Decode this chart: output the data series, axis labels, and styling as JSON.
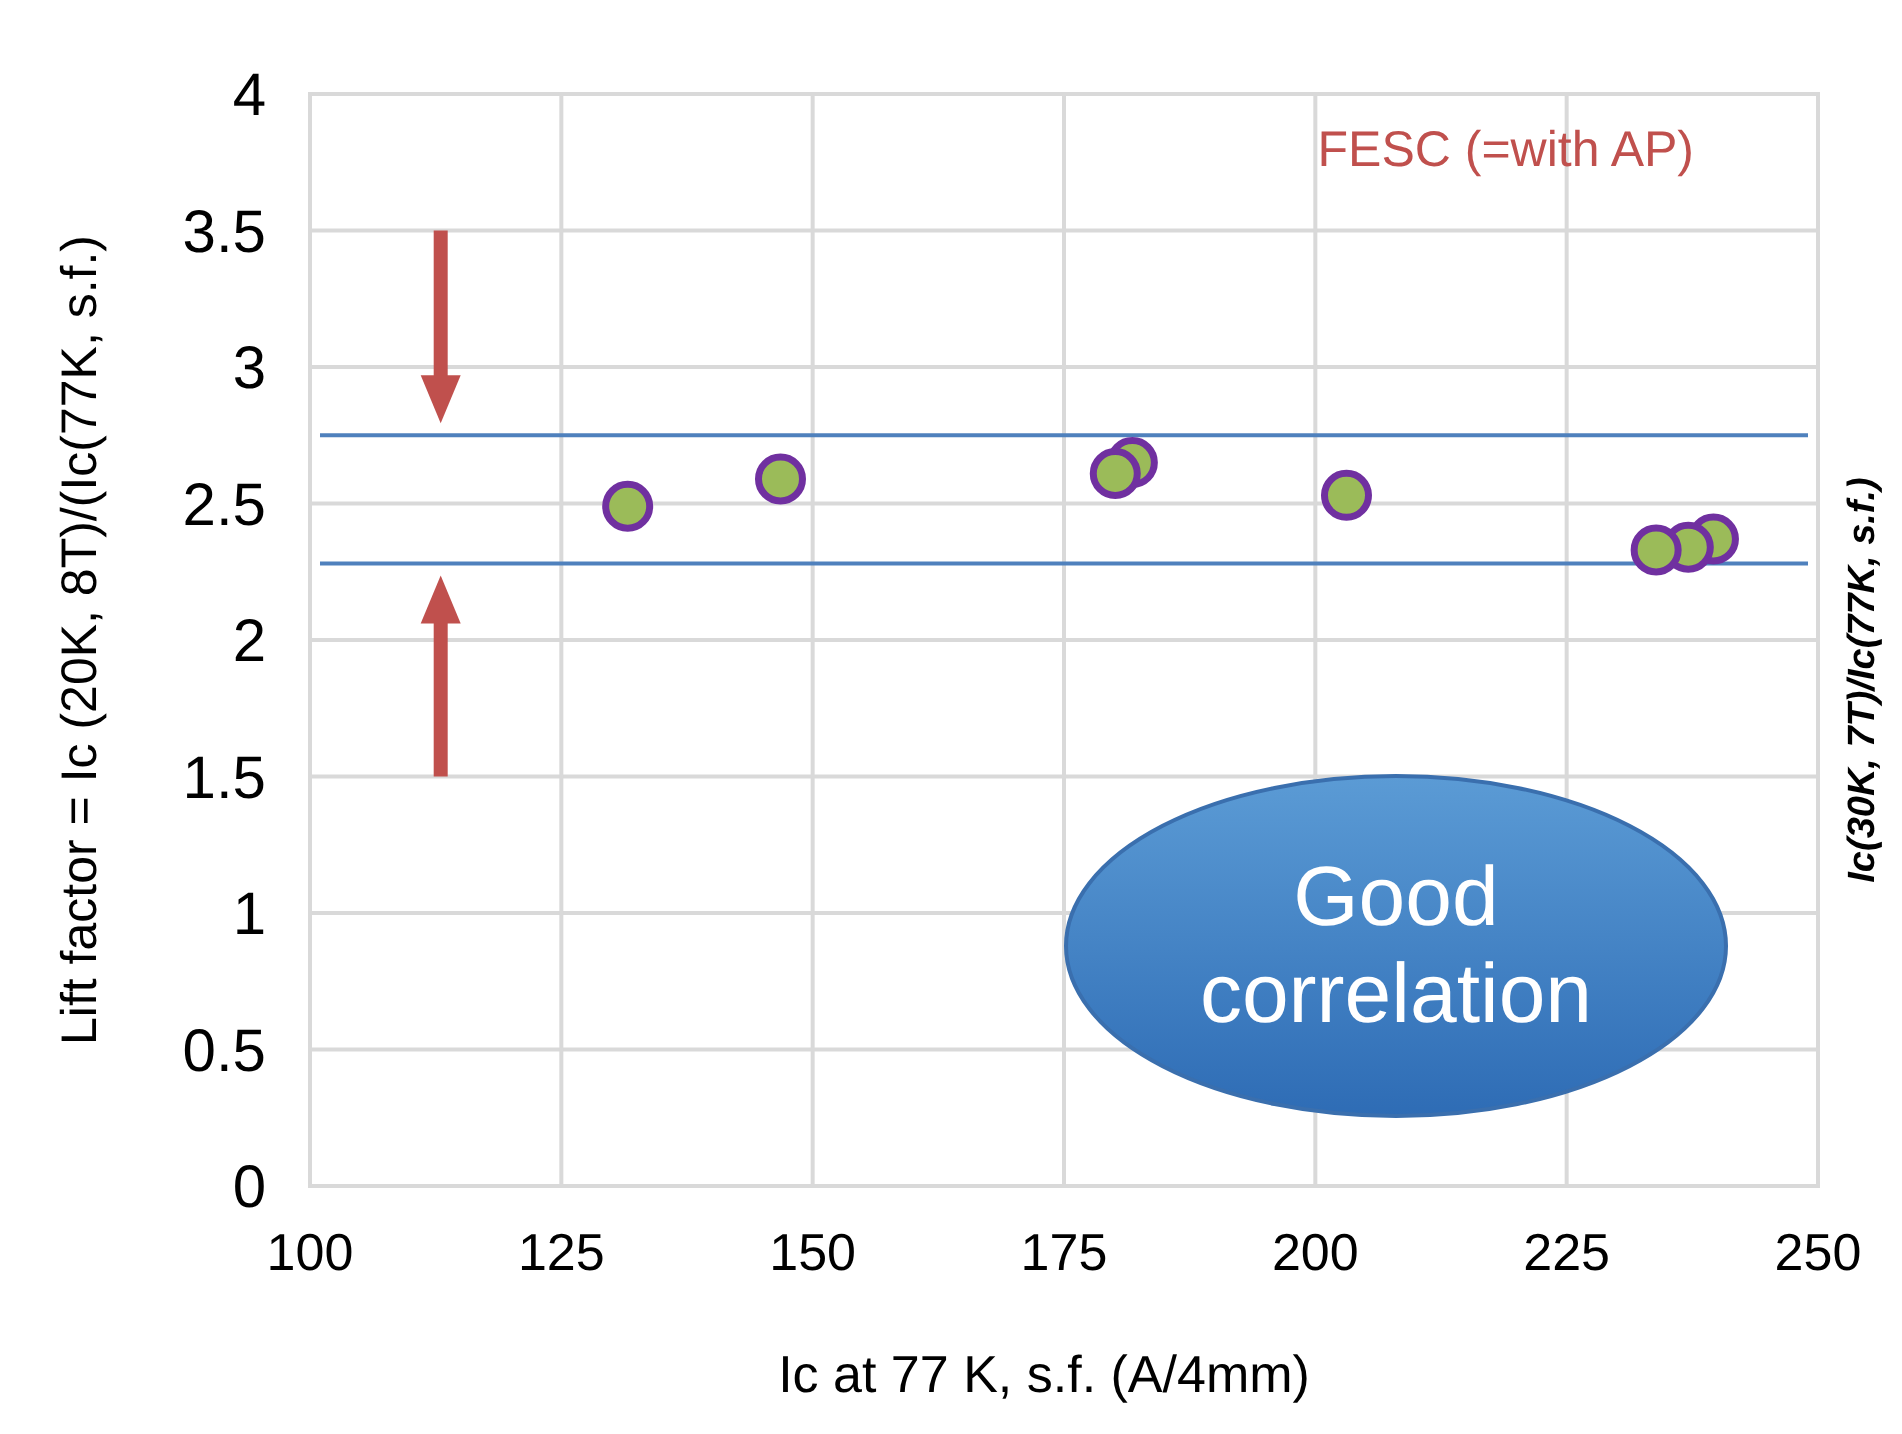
{
  "chart_data": {
    "type": "scatter",
    "xlabel": "Ic at 77 K, s.f. (A/4mm)",
    "ylabel": "Lift factor = Ic (20K, 8T)/(Ic(77K, s.f.)",
    "x": [
      131.6,
      146.8,
      181.8,
      180.1,
      203.1,
      239.6,
      237.1,
      233.9
    ],
    "series": [
      {
        "color": "#9bbb59",
        "values": [
          2.49,
          2.59,
          2.65,
          2.61,
          2.53,
          2.37,
          2.34,
          2.33
        ]
      }
    ],
    "marker": "circle",
    "xlim": [
      100,
      250
    ],
    "xticks": [
      100,
      125,
      150,
      175,
      200,
      225,
      250
    ],
    "ylim": [
      0,
      4
    ],
    "yticks": [
      0,
      0.5,
      1,
      1.5,
      2,
      2.5,
      3,
      3.5,
      4
    ],
    "grid": true,
    "ref_lines": [
      {
        "axis": "y",
        "value": 2.75,
        "color": "#4f81bd"
      },
      {
        "axis": "y",
        "value": 2.28,
        "color": "#4f81bd"
      }
    ],
    "annotations": [
      "FESC  (=with AP)",
      "Good correlation",
      "Ic(30K, 7T)/Ic(77K, s.f.)"
    ]
  }
}
